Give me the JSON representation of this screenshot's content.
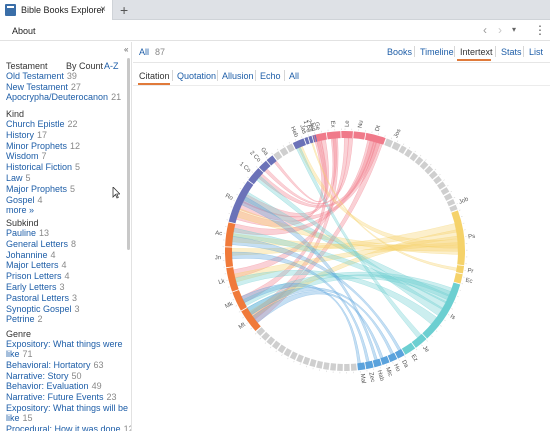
{
  "app": {
    "tab_title": "Bible Books Explorer",
    "tab_close": "×",
    "new_tab": "+",
    "about": "About",
    "back": "‹",
    "forward": "›",
    "menu": "▾",
    "more": "⋮",
    "collapse": "«"
  },
  "sidebar": {
    "testament_title": "Testament",
    "sort_by_count": "By Count",
    "sort_az": "A-Z",
    "testament": [
      {
        "label": "Old Testament",
        "count": "39"
      },
      {
        "label": "New Testament",
        "count": "27"
      },
      {
        "label": "Apocrypha/Deuterocanon",
        "count": "21"
      }
    ],
    "kind_title": "Kind",
    "kind": [
      {
        "label": "Church Epistle",
        "count": "22"
      },
      {
        "label": "History",
        "count": "17"
      },
      {
        "label": "Minor Prophets",
        "count": "12"
      },
      {
        "label": "Wisdom",
        "count": "7"
      },
      {
        "label": "Historical Fiction",
        "count": "5"
      },
      {
        "label": "Law",
        "count": "5"
      },
      {
        "label": "Major Prophets",
        "count": "5"
      },
      {
        "label": "Gospel",
        "count": "4"
      },
      {
        "label": "more »",
        "count": ""
      }
    ],
    "subkind_title": "Subkind",
    "subkind": [
      {
        "label": "Pauline",
        "count": "13"
      },
      {
        "label": "General Letters",
        "count": "8"
      },
      {
        "label": "Johannine",
        "count": "4"
      },
      {
        "label": "Major Letters",
        "count": "4"
      },
      {
        "label": "Prison Letters",
        "count": "4"
      },
      {
        "label": "Early Letters",
        "count": "3"
      },
      {
        "label": "Pastoral Letters",
        "count": "3"
      },
      {
        "label": "Synoptic Gospel",
        "count": "3"
      },
      {
        "label": "Petrine",
        "count": "2"
      }
    ],
    "genre_title": "Genre",
    "genre": [
      {
        "lines": [
          "Expository: What things were",
          "like"
        ],
        "count": "71"
      },
      {
        "lines": [
          "Behavioral: Hortatory"
        ],
        "count": "63"
      },
      {
        "lines": [
          "Narrative: Story"
        ],
        "count": "50"
      },
      {
        "lines": [
          "Behavior: Evaluation"
        ],
        "count": "49"
      },
      {
        "lines": [
          "Narrative: Future Events"
        ],
        "count": "23"
      },
      {
        "lines": [
          "Expository: What things will be",
          "like"
        ],
        "count": "15"
      },
      {
        "lines": [
          "Procedural: How it was done"
        ],
        "count": "12"
      }
    ]
  },
  "main": {
    "all_label": "All",
    "all_count": "87",
    "views": [
      "Books",
      "Timeline",
      "Intertext",
      "Stats",
      "List"
    ],
    "active_view": "Intertext",
    "filters": [
      "Citation",
      "Quotation",
      "Allusion",
      "Echo",
      "All"
    ],
    "active_filter": "Citation"
  },
  "colors": {
    "link": "#1e5ea8",
    "accent": "#e07a3a",
    "law": "#f07a8a",
    "history": "#9fa8b6",
    "wisdom": "#f5d26a",
    "prophets": "#6ccfd1",
    "gospels": "#f07a3a",
    "epistles": "#6b72b8",
    "minor": "#5aa2dc"
  },
  "chart_data": {
    "type": "chord",
    "labeled_books": [
      "Ge",
      "Ex",
      "Le",
      "Nu",
      "Dt",
      "Jos",
      "Job",
      "Ps",
      "Pr",
      "Ec",
      "Is",
      "Je",
      "Ez",
      "Da",
      "Ho",
      "Mic",
      "Hab",
      "Zec",
      "Mal",
      "Mt",
      "Mk",
      "Lk",
      "Jn",
      "Ac",
      "Ro",
      "1 Co",
      "2 Co",
      "Ga",
      "Heb",
      "1 Pe",
      "2 Pe",
      "Jas",
      "Jud"
    ],
    "segments": [
      {
        "label": "Ge",
        "group": "law",
        "start": -16,
        "end": -9
      },
      {
        "label": "Ex",
        "group": "law",
        "start": -9,
        "end": -2
      },
      {
        "label": "Le",
        "group": "law",
        "start": -2,
        "end": 4
      },
      {
        "label": "Nu",
        "group": "law",
        "start": 4,
        "end": 10
      },
      {
        "label": "Dt",
        "group": "law",
        "start": 10,
        "end": 20
      },
      {
        "label": "Jos",
        "group": "history",
        "start": 20,
        "end": 28
      },
      {
        "label": "",
        "group": "history",
        "start": 28,
        "end": 64
      },
      {
        "label": "Job",
        "group": "history",
        "start": 64,
        "end": 70
      },
      {
        "label": "Ps",
        "group": "wisdom",
        "start": 70,
        "end": 97
      },
      {
        "label": "Pr",
        "group": "wisdom",
        "start": 97,
        "end": 101
      },
      {
        "label": "Ec",
        "group": "wisdom",
        "start": 101,
        "end": 106
      },
      {
        "label": "Is",
        "group": "prophets",
        "start": 106,
        "end": 137
      },
      {
        "label": "Je",
        "group": "prophets",
        "start": 137,
        "end": 144
      },
      {
        "label": "Ez",
        "group": "prophets",
        "start": 144,
        "end": 150
      },
      {
        "label": "Da",
        "group": "minor",
        "start": 150,
        "end": 154
      },
      {
        "label": "Ho",
        "group": "minor",
        "start": 154,
        "end": 158
      },
      {
        "label": "Mic",
        "group": "minor",
        "start": 158,
        "end": 162
      },
      {
        "label": "Hab",
        "group": "minor",
        "start": 162,
        "end": 166
      },
      {
        "label": "Zec",
        "group": "minor",
        "start": 166,
        "end": 170
      },
      {
        "label": "Mal",
        "group": "minor",
        "start": 170,
        "end": 174
      },
      {
        "label": "",
        "group": "history",
        "start": 174,
        "end": 228
      },
      {
        "label": "Mt",
        "group": "gospels",
        "start": 228,
        "end": 240
      },
      {
        "label": "Mk",
        "group": "gospels",
        "start": 240,
        "end": 250
      },
      {
        "label": "Lk",
        "group": "gospels",
        "start": 250,
        "end": 262
      },
      {
        "label": "Jn",
        "group": "gospels",
        "start": 262,
        "end": 272
      },
      {
        "label": "Ac",
        "group": "gospels",
        "start": 272,
        "end": 284
      },
      {
        "label": "Ro",
        "group": "epistles",
        "start": 284,
        "end": 306
      },
      {
        "label": "1 Co",
        "group": "epistles",
        "start": 306,
        "end": 314
      },
      {
        "label": "2 Co",
        "group": "epistles",
        "start": 314,
        "end": 319
      },
      {
        "label": "Ga",
        "group": "epistles",
        "start": 319,
        "end": 323
      },
      {
        "label": "",
        "group": "history",
        "start": 323,
        "end": 334
      },
      {
        "label": "Heb",
        "group": "epistles",
        "start": 334,
        "end": 340
      },
      {
        "label": "Jas",
        "group": "epistles",
        "start": 340,
        "end": 342
      },
      {
        "label": "1 Pe",
        "group": "epistles",
        "start": 342,
        "end": 344
      },
      {
        "label": "2 Pe",
        "group": "epistles",
        "start": 344,
        "end": 345
      },
      {
        "label": "Jud",
        "group": "epistles",
        "start": 345,
        "end": 346
      }
    ],
    "chords": [
      {
        "from": "Ro",
        "to": "Ge",
        "group": "law"
      },
      {
        "from": "Ro",
        "to": "Ex",
        "group": "law"
      },
      {
        "from": "Ro",
        "to": "Dt",
        "group": "law"
      },
      {
        "from": "Ro",
        "to": "Ps",
        "group": "wisdom"
      },
      {
        "from": "Ro",
        "to": "Is",
        "group": "prophets"
      },
      {
        "from": "Mt",
        "to": "Ex",
        "group": "law"
      },
      {
        "from": "Mt",
        "to": "Dt",
        "group": "law"
      },
      {
        "from": "Mt",
        "to": "Is",
        "group": "prophets"
      },
      {
        "from": "Mt",
        "to": "Ps",
        "group": "wisdom"
      },
      {
        "from": "Mk",
        "to": "Ge",
        "group": "law"
      },
      {
        "from": "Mk",
        "to": "Is",
        "group": "prophets"
      },
      {
        "from": "Lk",
        "to": "Le",
        "group": "law"
      },
      {
        "from": "Lk",
        "to": "Ps",
        "group": "wisdom"
      },
      {
        "from": "Lk",
        "to": "Is",
        "group": "prophets"
      },
      {
        "from": "Jn",
        "to": "Ps",
        "group": "wisdom"
      },
      {
        "from": "Jn",
        "to": "Zec",
        "group": "minor"
      },
      {
        "from": "Ac",
        "to": "Ps",
        "group": "wisdom"
      },
      {
        "from": "Ac",
        "to": "Dt",
        "group": "law"
      },
      {
        "from": "Ac",
        "to": "Is",
        "group": "prophets"
      },
      {
        "from": "Heb",
        "to": "Ps",
        "group": "wisdom"
      },
      {
        "from": "Heb",
        "to": "Je",
        "group": "prophets"
      },
      {
        "from": "1 Co",
        "to": "Dt",
        "group": "law"
      },
      {
        "from": "1 Co",
        "to": "Is",
        "group": "prophets"
      },
      {
        "from": "2 Co",
        "to": "Le",
        "group": "law"
      },
      {
        "from": "Ga",
        "to": "Ge",
        "group": "law"
      },
      {
        "from": "1 Pe",
        "to": "Pr",
        "group": "wisdom"
      },
      {
        "from": "Mt",
        "to": "Mic",
        "group": "minor"
      },
      {
        "from": "Mt",
        "to": "Ho",
        "group": "minor"
      },
      {
        "from": "Ro",
        "to": "Hab",
        "group": "minor"
      },
      {
        "from": "Mk",
        "to": "Mal",
        "group": "minor"
      },
      {
        "from": "Ac",
        "to": "Da",
        "group": "minor"
      }
    ]
  }
}
